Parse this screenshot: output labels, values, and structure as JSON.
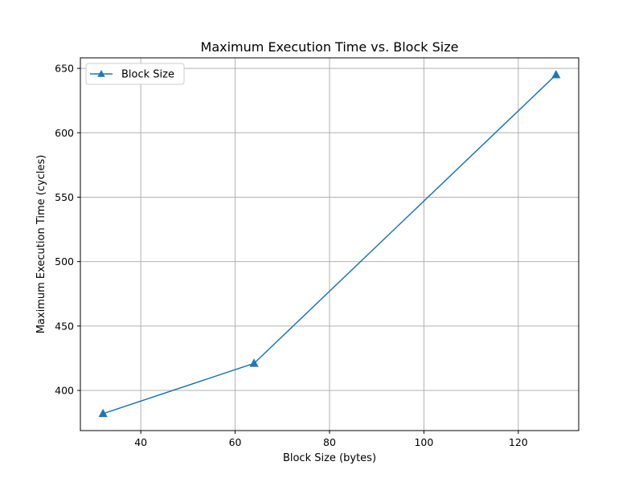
{
  "chart_data": {
    "type": "line",
    "title": "Maximum Execution Time vs. Block Size",
    "xlabel": "Block Size (bytes)",
    "ylabel": "Maximum Execution Time (cycles)",
    "xlim": [
      27.2,
      132.8
    ],
    "ylim": [
      368.85,
      658.15
    ],
    "xticks": [
      40,
      60,
      80,
      100,
      120
    ],
    "yticks": [
      400,
      450,
      500,
      550,
      600,
      650
    ],
    "grid": true,
    "legend_position": "top-left",
    "series": [
      {
        "name": "Block Size",
        "color": "#1f77b4",
        "marker": "triangle",
        "x": [
          32,
          64,
          128
        ],
        "y": [
          382,
          421,
          645
        ]
      }
    ]
  }
}
